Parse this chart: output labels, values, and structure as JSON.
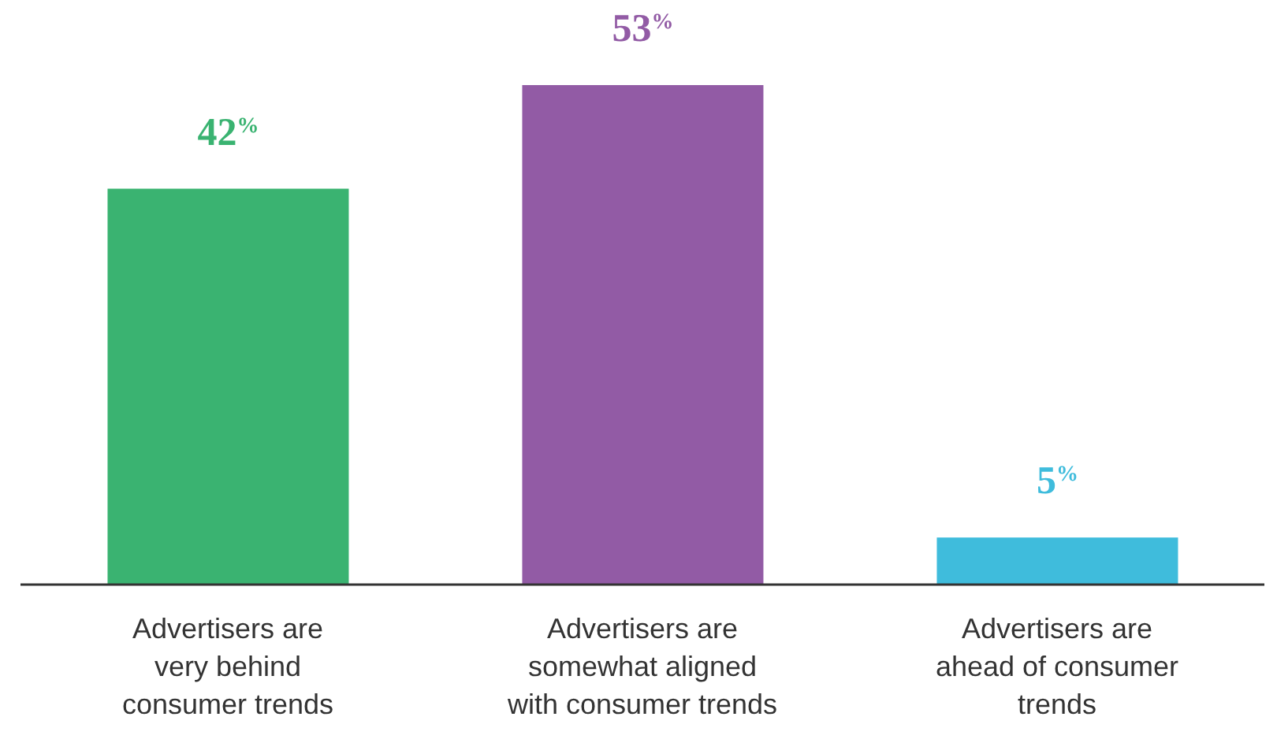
{
  "chart_data": {
    "type": "bar",
    "categories": [
      "Advertisers are\nvery behind\nconsumer trends",
      "Advertisers are\nsomewhat aligned\nwith consumer trends",
      "Advertisers are\nahead of consumer\ntrends"
    ],
    "values": [
      42,
      53,
      5
    ],
    "colors": [
      "#3ab371",
      "#925ba5",
      "#3fbcdc"
    ],
    "value_labels": [
      "42$^{%}$",
      "53$^{%}$",
      "5$^{%}$"
    ],
    "grid": false,
    "legend": false
  }
}
